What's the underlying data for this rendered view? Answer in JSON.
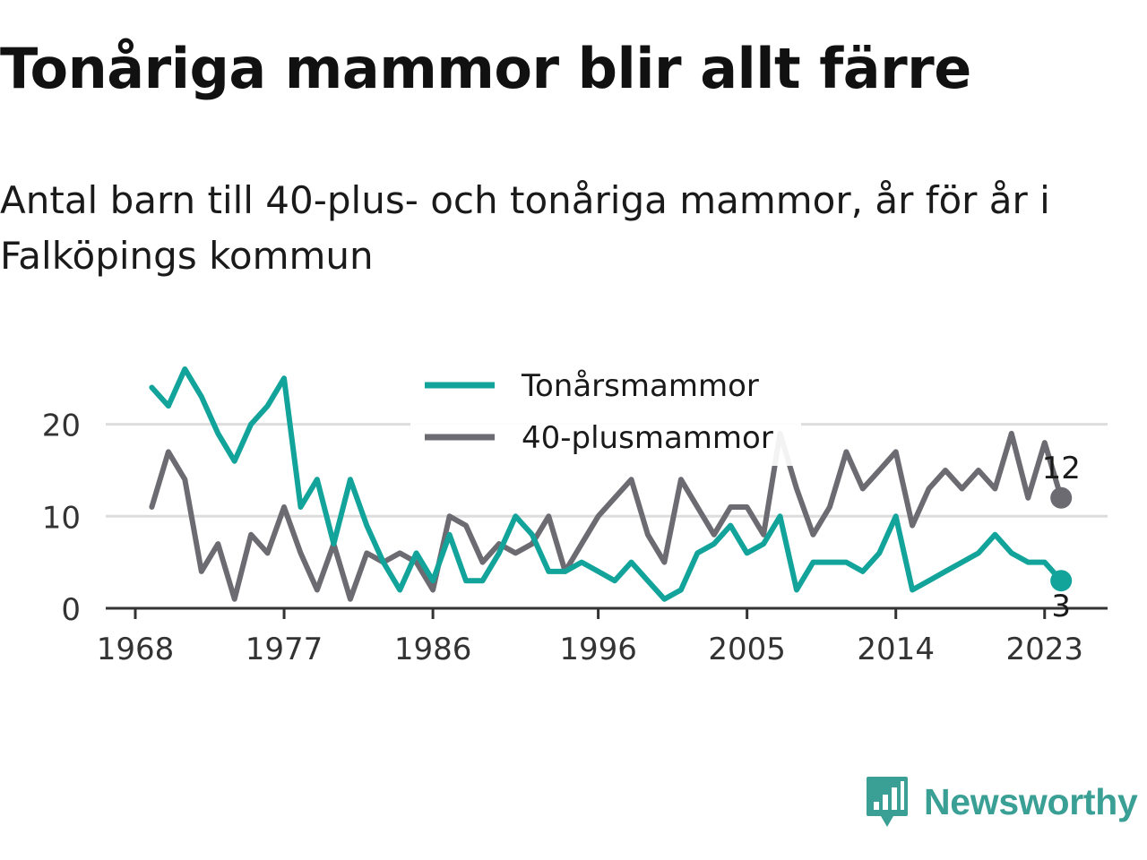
{
  "title": "Tonåriga mammor blir allt färre",
  "subtitle": "Antal barn till 40-plus- och tonåriga mammor, år för år i Falköpings kommun",
  "brand": {
    "name": "Newsworthy",
    "icon": "newsworthy-logo-icon"
  },
  "colors": {
    "teen": "#12a39a",
    "forty": "#6d6b72",
    "grid": "#dddddd",
    "axis": "#333333",
    "brand": "#3a9f94"
  },
  "chart_data": {
    "type": "line",
    "x": [
      1969,
      1970,
      1971,
      1972,
      1973,
      1974,
      1975,
      1976,
      1977,
      1978,
      1979,
      1980,
      1981,
      1982,
      1983,
      1984,
      1985,
      1986,
      1987,
      1988,
      1989,
      1990,
      1991,
      1992,
      1993,
      1994,
      1995,
      1996,
      1997,
      1998,
      1999,
      2000,
      2001,
      2002,
      2003,
      2004,
      2005,
      2006,
      2007,
      2008,
      2009,
      2010,
      2011,
      2012,
      2013,
      2014,
      2015,
      2016,
      2017,
      2018,
      2019,
      2020,
      2021,
      2022,
      2023,
      2024
    ],
    "series": [
      {
        "name": "Tonårsmammor",
        "color": "#12a39a",
        "values": [
          24,
          22,
          26,
          23,
          19,
          16,
          20,
          22,
          25,
          11,
          14,
          7,
          14,
          9,
          5,
          2,
          6,
          3,
          8,
          3,
          3,
          6,
          10,
          8,
          4,
          4,
          5,
          4,
          3,
          5,
          3,
          1,
          2,
          6,
          7,
          9,
          6,
          7,
          10,
          2,
          5,
          5,
          5,
          4,
          6,
          10,
          2,
          3,
          4,
          5,
          6,
          8,
          6,
          5,
          5,
          3
        ]
      },
      {
        "name": "40-plusmammor",
        "color": "#6d6b72",
        "values": [
          11,
          17,
          14,
          4,
          7,
          1,
          8,
          6,
          11,
          6,
          2,
          7,
          1,
          6,
          5,
          6,
          5,
          2,
          10,
          9,
          5,
          7,
          6,
          7,
          10,
          4,
          7,
          10,
          12,
          14,
          8,
          5,
          14,
          11,
          8,
          11,
          11,
          8,
          19,
          13,
          8,
          11,
          17,
          13,
          15,
          17,
          9,
          13,
          15,
          13,
          15,
          13,
          19,
          12,
          18,
          12
        ]
      }
    ],
    "xticks": [
      "1968",
      "1977",
      "1986",
      "1996",
      "2005",
      "2014",
      "2023"
    ],
    "yticks": [
      "0",
      "10",
      "20"
    ],
    "ylim": [
      0,
      26
    ],
    "grid": "horizontal",
    "legend": "top-center",
    "end_labels": [
      "12",
      "3"
    ]
  }
}
